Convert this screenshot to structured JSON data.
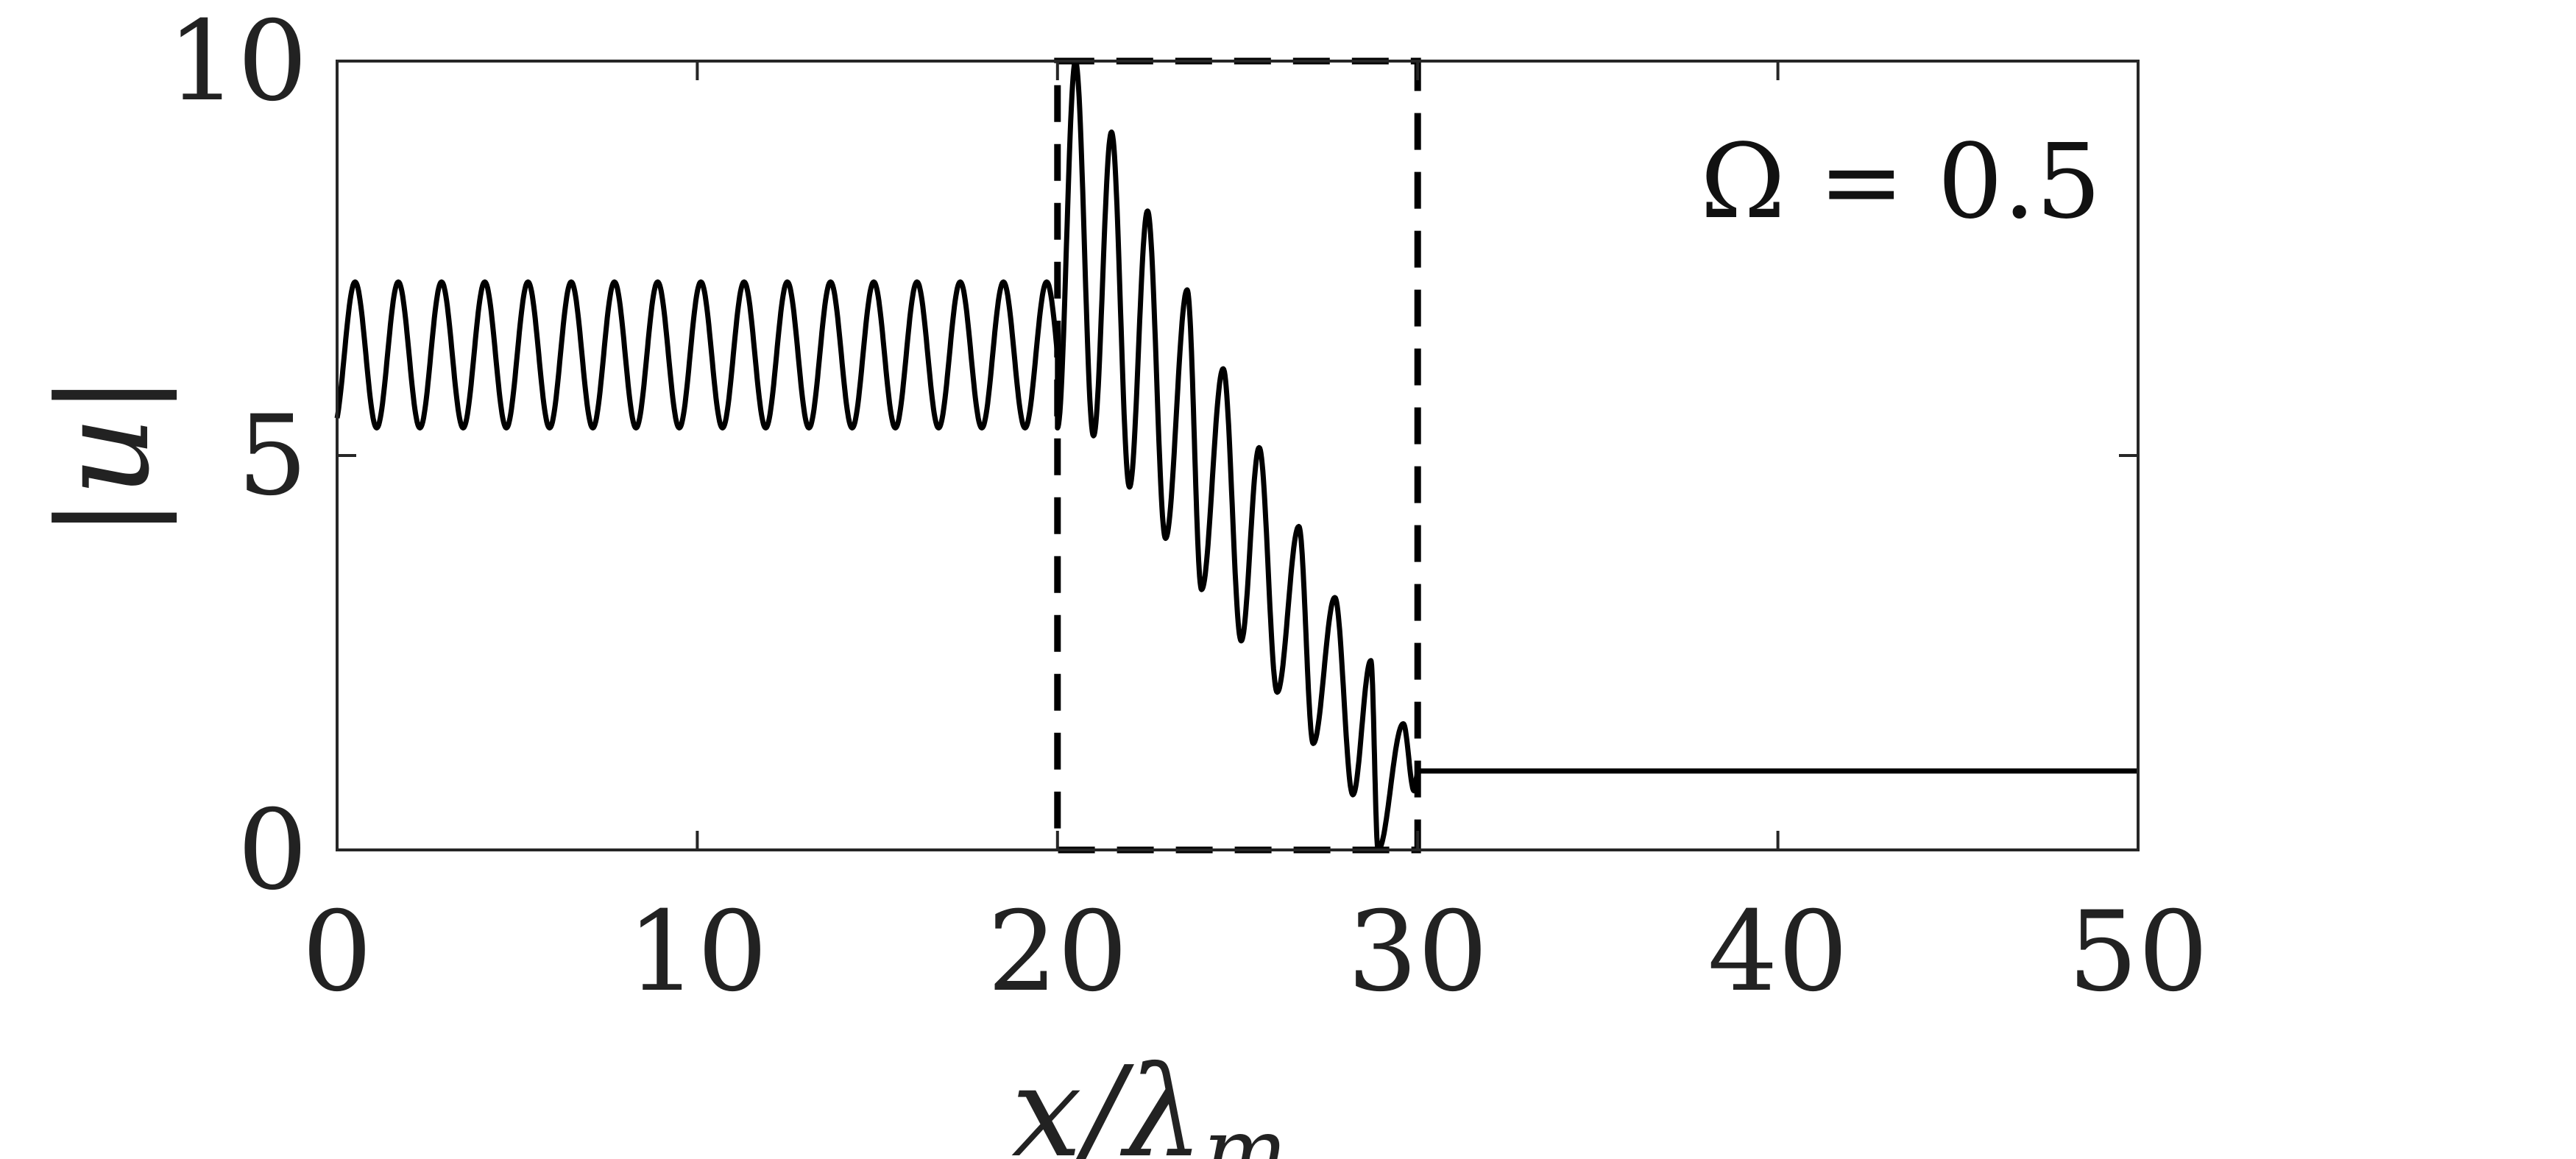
{
  "chart_data": {
    "type": "line",
    "xlabel": "x/λ",
    "xlabel_subscript": "m",
    "ylabel": "|u|",
    "xlim": [
      0,
      50
    ],
    "ylim": [
      0,
      10
    ],
    "x_ticks": [
      0,
      10,
      20,
      30,
      40,
      50
    ],
    "y_ticks": [
      0,
      5,
      10
    ],
    "x_tick_labels": [
      "0",
      "10",
      "20",
      "30",
      "40",
      "50"
    ],
    "y_tick_labels": [
      "0",
      "5",
      "10"
    ],
    "grid": false,
    "annotation": "Ω = 0.5",
    "annotation_position": "top-right",
    "series": [
      {
        "style": "solid",
        "color": "#000000",
        "regions": [
          {
            "x_start": 0,
            "x_end": 20,
            "kind": "uniform-oscillation",
            "min": 5.35,
            "max": 7.2,
            "period": 1.2
          },
          {
            "x_start": 20,
            "x_end": 30,
            "kind": "decaying-oscillation",
            "peaks": [
              {
                "x": 20.5,
                "y": 10.0
              },
              {
                "x": 21.5,
                "y": 9.1
              },
              {
                "x": 22.5,
                "y": 8.1
              },
              {
                "x": 23.6,
                "y": 7.1
              },
              {
                "x": 24.6,
                "y": 6.1
              },
              {
                "x": 25.6,
                "y": 5.1
              },
              {
                "x": 26.7,
                "y": 4.1
              },
              {
                "x": 27.7,
                "y": 3.2
              },
              {
                "x": 28.7,
                "y": 2.4
              },
              {
                "x": 29.6,
                "y": 1.6
              }
            ],
            "troughs": [
              {
                "x": 20.0,
                "y": 5.35
              },
              {
                "x": 21.0,
                "y": 5.25
              },
              {
                "x": 22.0,
                "y": 4.6
              },
              {
                "x": 23.0,
                "y": 3.95
              },
              {
                "x": 24.0,
                "y": 3.3
              },
              {
                "x": 25.1,
                "y": 2.65
              },
              {
                "x": 26.1,
                "y": 2.0
              },
              {
                "x": 27.1,
                "y": 1.35
              },
              {
                "x": 28.2,
                "y": 0.7
              },
              {
                "x": 28.9,
                "y": 0.0
              },
              {
                "x": 29.9,
                "y": 0.75
              }
            ]
          },
          {
            "x_start": 30,
            "x_end": 50,
            "kind": "constant",
            "value": 1.0
          }
        ]
      }
    ],
    "highlight_box": {
      "x": [
        20,
        30
      ],
      "y": [
        0,
        10
      ],
      "style": "dashed",
      "color": "#000000"
    }
  }
}
